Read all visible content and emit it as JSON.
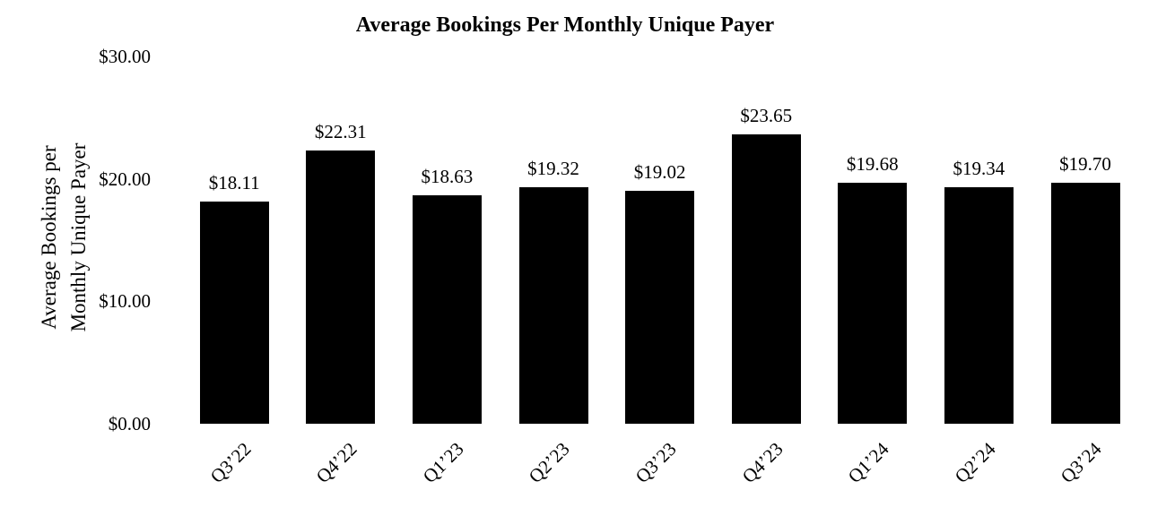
{
  "title": "Average Bookings Per Monthly Unique Payer",
  "y_axis": {
    "title_line1": "Average Bookings per",
    "title_line2": "Monthly Unique Payer",
    "ticks": [
      "$30.00",
      "$20.00",
      "$10.00",
      "$0.00"
    ]
  },
  "chart_data": {
    "type": "bar",
    "title": "Average Bookings Per Monthly Unique Payer",
    "categories": [
      "Q3’22",
      "Q4’22",
      "Q1’23",
      "Q2’23",
      "Q3’23",
      "Q4’23",
      "Q1’24",
      "Q2’24",
      "Q3’24"
    ],
    "values": [
      18.11,
      22.31,
      18.63,
      19.32,
      19.02,
      23.65,
      19.68,
      19.34,
      19.7
    ],
    "data_labels": [
      "$18.11",
      "$22.31",
      "$18.63",
      "$19.32",
      "$19.02",
      "$23.65",
      "$19.68",
      "$19.34",
      "$19.70"
    ],
    "xlabel": "",
    "ylabel": "Average Bookings per Monthly Unique Payer",
    "ylim": [
      0,
      30
    ],
    "ytick_interval": 10,
    "ytick_labels": [
      "$30.00",
      "$20.00",
      "$10.00",
      "$0.00"
    ],
    "bar_color": "#000000",
    "text_color": "#000000",
    "background_color": "#ffffff",
    "grid": false,
    "legend": false,
    "axis_lines": false
  }
}
